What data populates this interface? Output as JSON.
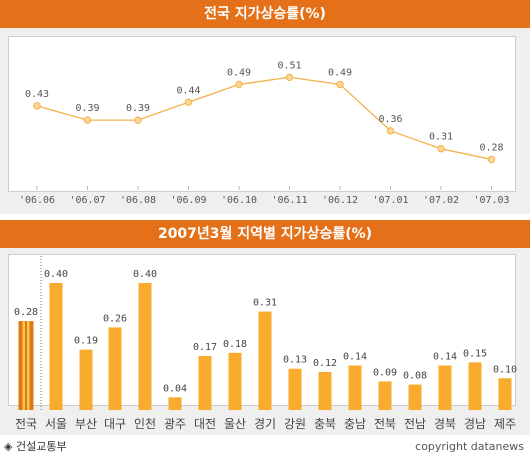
{
  "line_title": "전국 지가상승률(%)",
  "bar_title": "2007년3월 지역별 지가상승률(%)",
  "source_label": "건설교통부",
  "source_symbol": "◈",
  "copyright": "copyright datanews",
  "colors": {
    "banner": "#e4711a",
    "line": "#f3b14a",
    "bar": "#f8ab2c",
    "bar_highlight": "#e07812",
    "highlight_stripe": "#f8c454"
  },
  "chart_data": [
    {
      "type": "line",
      "title": "전국 지가상승률(%)",
      "categories": [
        "'06.06",
        "'06.07",
        "'06.08",
        "'06.09",
        "'06.10",
        "'06.11",
        "'06.12",
        "'07.01",
        "'07.02",
        "'07.03"
      ],
      "values": [
        0.43,
        0.39,
        0.39,
        0.44,
        0.49,
        0.51,
        0.49,
        0.36,
        0.31,
        0.28
      ],
      "value_labels": [
        "0.43",
        "0.39",
        "0.39",
        "0.44",
        "0.49",
        "0.51",
        "0.49",
        "0.36",
        "0.31",
        "0.28"
      ],
      "ylim": [
        0.2,
        0.55
      ],
      "grid": false
    },
    {
      "type": "bar",
      "title": "2007년3월 지역별 지가상승률(%)",
      "categories": [
        "전국",
        "서울",
        "부산",
        "대구",
        "인천",
        "광주",
        "대전",
        "울산",
        "경기",
        "강원",
        "충북",
        "충남",
        "전북",
        "전남",
        "경북",
        "경남",
        "제주"
      ],
      "values": [
        0.28,
        0.4,
        0.19,
        0.26,
        0.4,
        0.04,
        0.17,
        0.18,
        0.31,
        0.13,
        0.12,
        0.14,
        0.09,
        0.08,
        0.14,
        0.15,
        0.1
      ],
      "value_labels": [
        "0.28",
        "0.40",
        "0.19",
        "0.26",
        "0.40",
        "0.04",
        "0.17",
        "0.18",
        "0.31",
        "0.13",
        "0.12",
        "0.14",
        "0.09",
        "0.08",
        "0.14",
        "0.15",
        "0.10"
      ],
      "ylim": [
        0,
        0.47
      ],
      "highlighted_category": "전국",
      "grid": false
    }
  ]
}
